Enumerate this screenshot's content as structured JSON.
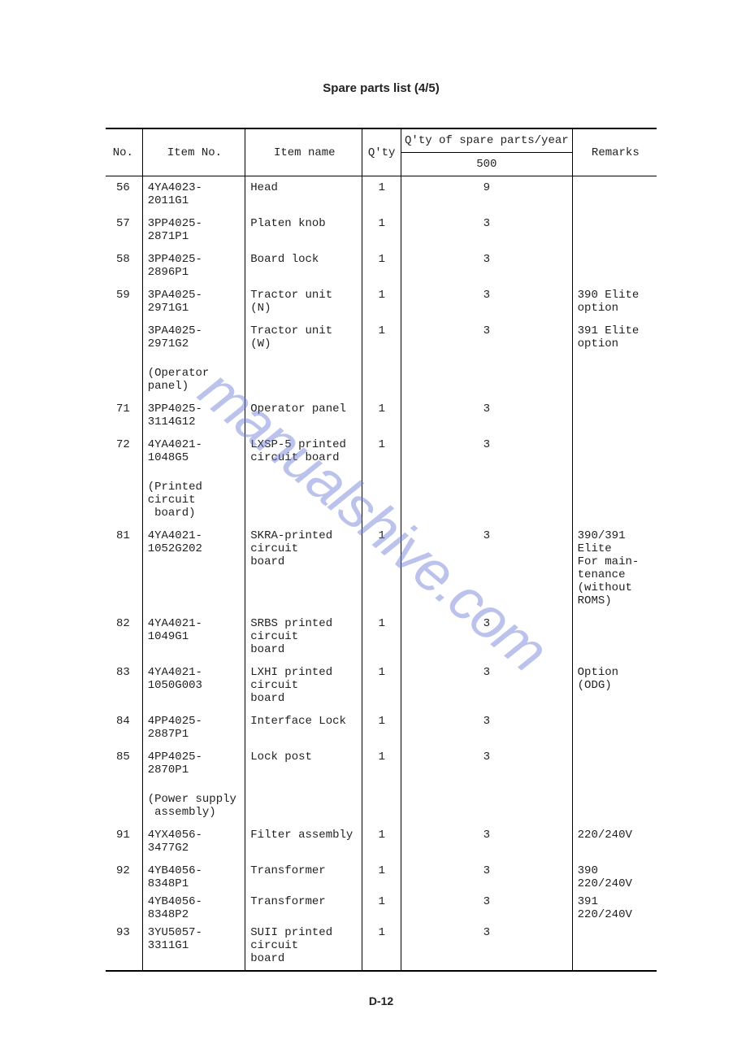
{
  "title": "Spare parts list   (4/5)",
  "footer": "D-12",
  "watermark": "manualshive.com",
  "header": {
    "no": "No.",
    "itemno": "Item No.",
    "name": "Item name",
    "qty": "Q'ty",
    "spare_top": "Q'ty of spare parts/year",
    "spare_sub": "500",
    "remarks": "Remarks"
  },
  "rows": [
    {
      "no": "56",
      "itemno": "4YA4023-2011G1",
      "name": "Head",
      "qty": "1",
      "spare": "9",
      "rem": ""
    },
    {
      "no": "57",
      "itemno": "3PP4025-2871P1",
      "name": "Platen knob",
      "qty": "1",
      "spare": "3",
      "rem": ""
    },
    {
      "no": "58",
      "itemno": "3PP4025-2896P1",
      "name": "Board lock",
      "qty": "1",
      "spare": "3",
      "rem": ""
    },
    {
      "no": "59",
      "itemno": "3PA4025-2971G1",
      "name": "Tractor unit (N)",
      "qty": "1",
      "spare": "3",
      "rem": "390 Elite option"
    },
    {
      "no": "",
      "itemno": "3PA4025-2971G2",
      "name": "Tractor unit (W)",
      "qty": "1",
      "spare": "3",
      "rem": "391 Elite option"
    },
    {
      "no": "",
      "itemno": "(Operator panel)",
      "name": "",
      "qty": "",
      "spare": "",
      "rem": "",
      "section": true
    },
    {
      "no": "71",
      "itemno": "3PP4025-3114G12",
      "name": "Operator panel",
      "qty": "1",
      "spare": "3",
      "rem": ""
    },
    {
      "no": "72",
      "itemno": "4YA4021-1048G5",
      "name": "LXSP-5 printed circuit board",
      "qty": "1",
      "spare": "3",
      "rem": ""
    },
    {
      "no": "",
      "itemno": "(Printed circuit board)",
      "name": "",
      "qty": "",
      "spare": "",
      "rem": "",
      "section": true
    },
    {
      "no": "81",
      "itemno": "4YA4021-1052G202",
      "name": "SKRA-printed circuit board",
      "qty": "1",
      "spare": "3",
      "rem": "390/391 Elite For main- tenance (without ROMS)"
    },
    {
      "no": "82",
      "itemno": "4YA4021-1049G1",
      "name": "SRBS printed circuit board",
      "qty": "1",
      "spare": "3",
      "rem": ""
    },
    {
      "no": "83",
      "itemno": "4YA4021-1050G003",
      "name": "LXHI printed circuit board",
      "qty": "1",
      "spare": "3",
      "rem": "Option (ODG)"
    },
    {
      "no": "84",
      "itemno": "4PP4025-2887P1",
      "name": "Interface Lock",
      "qty": "1",
      "spare": "3",
      "rem": ""
    },
    {
      "no": "85",
      "itemno": "4PP4025-2870P1",
      "name": "Lock post",
      "qty": "1",
      "spare": "3",
      "rem": ""
    },
    {
      "no": "",
      "itemno": "(Power supply assembly)",
      "name": "",
      "qty": "",
      "spare": "",
      "rem": "",
      "section": true
    },
    {
      "no": "91",
      "itemno": "4YX4056-3477G2",
      "name": "Filter assembly",
      "qty": "1",
      "spare": "3",
      "rem": "220/240V"
    },
    {
      "no": "92",
      "itemno": "4YB4056-8348P1",
      "name": "Transformer",
      "qty": "1",
      "spare": "3",
      "rem": "390 220/240V"
    },
    {
      "no": "",
      "itemno": "4YB4056-8348P2",
      "name": "Transformer",
      "qty": "1",
      "spare": "3",
      "rem": "391 220/240V",
      "tight": true
    },
    {
      "no": "93",
      "itemno": "3YU5057-3311G1",
      "name": "SUII printed circuit board",
      "qty": "1",
      "spare": "3",
      "rem": "",
      "last": true
    }
  ]
}
